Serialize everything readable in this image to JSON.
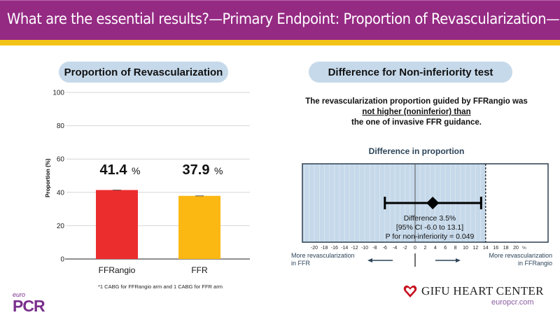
{
  "header": {
    "title": "What are the essential results?—Primary Endpoint: Proportion of Revascularization—",
    "bg_color": "#952a83",
    "accent_color": "#f3c417"
  },
  "left_panel": {
    "title": "Proportion of Revascularization",
    "footnote": "*1 CABG for FFRangio arm and 1 CABG for FFR arm"
  },
  "right_panel": {
    "title": "Difference for Non-inferiority test",
    "statement_line1": "The revascularization proportion guided by FFRangio was",
    "statement_line2": "not higher (noninferior) than",
    "statement_line3": "the one of invasive FFR guidance.",
    "more_left_line1": "More revascularization",
    "more_left_line2": "in FFR",
    "more_right_line1": "More revascularization",
    "more_right_line2": "in FFRangio"
  },
  "logos": {
    "euro": "euro",
    "pcr": "PCR",
    "gifu": "GIFU HEART CENTER",
    "url": "europcr.com"
  },
  "chart_data": [
    {
      "type": "bar",
      "title": "Proportion of Revascularization",
      "categories": [
        "FFRangio",
        "FFR"
      ],
      "values": [
        41.4,
        37.9
      ],
      "data_labels": [
        "41.4",
        "37.9"
      ],
      "data_label_unit": "%",
      "colors": [
        "#ec2d2e",
        "#fbb813"
      ],
      "xlabel": "",
      "ylabel": "Proportion (%)",
      "ylim": [
        0,
        100
      ],
      "yticks": [
        0,
        20,
        40,
        60,
        80,
        100
      ],
      "grid": true
    },
    {
      "type": "scatter",
      "subtype": "forest",
      "title": "Difference in proportion",
      "estimate": 3.5,
      "ci_low": -6.0,
      "ci_high": 13.1,
      "noninferiority_margin": 14,
      "xlim": [
        -22.5,
        26
      ],
      "xticks": [
        -20,
        -18,
        -16,
        -14,
        -12,
        -10,
        -8,
        -6,
        -4,
        -2,
        0,
        2,
        4,
        6,
        8,
        10,
        12,
        14,
        16,
        18,
        20
      ],
      "xtick_unit": "%",
      "annotation_line1": "Difference 3.5%",
      "annotation_line2": "[95% CI -6.0 to 13.1]",
      "annotation_line3": "P for non-inferiority = 0.049",
      "shade_color": "#c6d9ea"
    }
  ]
}
